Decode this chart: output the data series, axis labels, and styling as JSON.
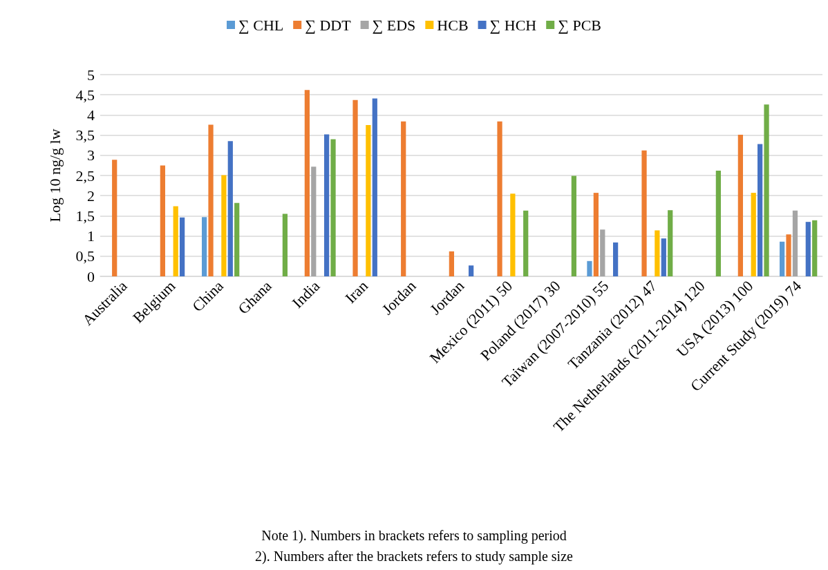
{
  "chart_data": {
    "type": "bar",
    "ylabel": "Log 10 ng/g lw",
    "categories": [
      "Australia",
      "Belgium",
      "China",
      "Ghana",
      "India",
      "Iran",
      "Jordan",
      "Jordan",
      "Mexico (2011) 50",
      "Poland (2017) 30",
      "Taiwan (2007-2010) 55",
      "Tanzania (2012) 47",
      "The Netherlands (2011-2014) 120",
      "USA (2013) 100",
      "Current Study (2019) 74"
    ],
    "series": [
      {
        "name": "∑ CHL",
        "color": "#5b9bd5",
        "values": [
          null,
          null,
          1.47,
          null,
          null,
          null,
          null,
          null,
          null,
          null,
          0.38,
          null,
          null,
          null,
          0.86
        ]
      },
      {
        "name": "∑ DDT",
        "color": "#ed7d31",
        "values": [
          2.89,
          2.75,
          3.76,
          null,
          4.62,
          4.37,
          3.84,
          0.62,
          3.84,
          null,
          2.07,
          3.12,
          null,
          3.51,
          1.04
        ]
      },
      {
        "name": "∑ EDS",
        "color": "#a5a5a5",
        "values": [
          null,
          null,
          null,
          null,
          2.72,
          null,
          null,
          null,
          null,
          null,
          1.16,
          null,
          null,
          null,
          1.63
        ]
      },
      {
        "name": "HCB",
        "color": "#ffc000",
        "values": [
          null,
          1.74,
          2.51,
          null,
          null,
          3.75,
          null,
          null,
          2.05,
          null,
          null,
          1.14,
          null,
          2.07,
          null
        ]
      },
      {
        "name": "∑ HCH",
        "color": "#4472c4",
        "values": [
          null,
          1.46,
          3.35,
          null,
          3.52,
          4.41,
          null,
          0.27,
          null,
          null,
          0.84,
          0.94,
          null,
          3.28,
          1.35
        ]
      },
      {
        "name": "∑ PCB",
        "color": "#70ad47",
        "values": [
          null,
          null,
          1.82,
          1.55,
          3.4,
          null,
          null,
          null,
          1.63,
          2.49,
          null,
          1.64,
          2.62,
          4.26,
          1.39
        ]
      }
    ],
    "ylim": [
      0,
      5
    ],
    "yticks": [
      0,
      {
        "value": 0.5,
        "label": "0,5"
      },
      1,
      {
        "value": 1.5,
        "label": "1,5"
      },
      2,
      {
        "value": 2.5,
        "label": "2,5"
      },
      3,
      {
        "value": 3.5,
        "label": "3,5"
      },
      4,
      {
        "value": 4.5,
        "label": "4,5"
      },
      5
    ],
    "grid": "y",
    "legend": "top",
    "annotations": [
      "Note 1). Numbers in brackets refers to sampling period",
      "2). Numbers after the brackets refers to study sample size"
    ]
  }
}
